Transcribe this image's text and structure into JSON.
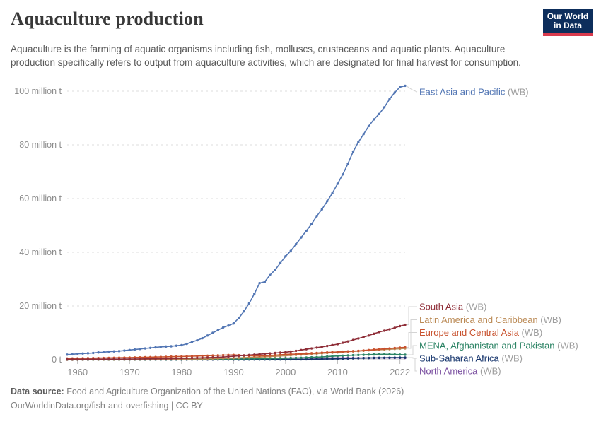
{
  "header": {
    "title": "Aquaculture production",
    "subtitle": "Aquaculture is the farming of aquatic organisms including fish, molluscs, crustaceans and aquatic plants. Aquaculture production specifically refers to output from aquaculture activities, which are designated for final harvest for consumption.",
    "logo": {
      "line1": "Our World",
      "line2": "in Data"
    }
  },
  "footer": {
    "source_label": "Data source:",
    "source_text": "Food and Agriculture Organization of the United Nations (FAO), via World Bank (2026)",
    "link_text": "OurWorldinData.org/fish-and-overfishing",
    "cc_text": " | CC BY"
  },
  "colors": {
    "grid": "#dedede",
    "zero_line": "#c8c8c8",
    "axis_text": "#8c8c8c",
    "connector": "#d4d4d4",
    "wb_suffix": "#9e9e9e",
    "logo_navy": "#0d2e5c",
    "logo_red": "#d93a4d"
  },
  "chart_data": {
    "type": "line",
    "title": "Aquaculture production",
    "unit": "million tonnes",
    "xlabel": "",
    "ylabel": "",
    "xlim": [
      1958,
      2023
    ],
    "ylim": [
      0,
      105
    ],
    "grid": "dashed-horizontal",
    "legend_position": "right-end-labels",
    "x_ticks": [
      {
        "value": 1960,
        "label": "1960"
      },
      {
        "value": 1970,
        "label": "1970"
      },
      {
        "value": 1980,
        "label": "1980"
      },
      {
        "value": 1990,
        "label": "1990"
      },
      {
        "value": 2000,
        "label": "2000"
      },
      {
        "value": 2010,
        "label": "2010"
      },
      {
        "value": 2022,
        "label": "2022"
      }
    ],
    "y_ticks": [
      {
        "value": 0,
        "label": "0 t"
      },
      {
        "value": 20,
        "label": "20 million t"
      },
      {
        "value": 40,
        "label": "40 million t"
      },
      {
        "value": 60,
        "label": "60 million t"
      },
      {
        "value": 80,
        "label": "80 million t"
      },
      {
        "value": 100,
        "label": "100 million t"
      }
    ],
    "x": [
      1958,
      1959,
      1960,
      1961,
      1962,
      1963,
      1964,
      1965,
      1966,
      1967,
      1968,
      1969,
      1970,
      1971,
      1972,
      1973,
      1974,
      1975,
      1976,
      1977,
      1978,
      1979,
      1980,
      1981,
      1982,
      1983,
      1984,
      1985,
      1986,
      1987,
      1988,
      1989,
      1990,
      1991,
      1992,
      1993,
      1994,
      1995,
      1996,
      1997,
      1998,
      1999,
      2000,
      2001,
      2002,
      2003,
      2004,
      2005,
      2006,
      2007,
      2008,
      2009,
      2010,
      2011,
      2012,
      2013,
      2014,
      2015,
      2016,
      2017,
      2018,
      2019,
      2020,
      2021,
      2022,
      2023
    ],
    "series": [
      {
        "name": "East Asia and Pacific",
        "suffix": " (WB)",
        "color": "#5276b4",
        "values": [
          1.9,
          2.0,
          2.2,
          2.3,
          2.4,
          2.5,
          2.7,
          2.8,
          3.0,
          3.1,
          3.2,
          3.4,
          3.6,
          3.8,
          4.0,
          4.2,
          4.4,
          4.6,
          4.8,
          4.9,
          5.0,
          5.2,
          5.4,
          5.9,
          6.6,
          7.2,
          8.0,
          9.0,
          10.0,
          11.0,
          12.0,
          12.7,
          13.5,
          15.5,
          18.0,
          21.0,
          24.5,
          28.5,
          29.0,
          31.5,
          33.5,
          36.0,
          38.5,
          40.5,
          43.0,
          45.5,
          48.0,
          50.5,
          53.5,
          56.0,
          59.0,
          62.0,
          65.5,
          69.0,
          73.0,
          77.5,
          81.0,
          84.0,
          87.0,
          89.5,
          91.5,
          94.0,
          97.0,
          99.5,
          101.5,
          102.0
        ]
      },
      {
        "name": "South Asia",
        "suffix": " (WB)",
        "color": "#8f2e38",
        "values": [
          0.1,
          0.11,
          0.12,
          0.13,
          0.14,
          0.15,
          0.16,
          0.18,
          0.19,
          0.2,
          0.22,
          0.23,
          0.25,
          0.27,
          0.29,
          0.31,
          0.33,
          0.35,
          0.38,
          0.41,
          0.44,
          0.47,
          0.5,
          0.55,
          0.6,
          0.66,
          0.72,
          0.78,
          0.85,
          0.92,
          1.0,
          1.15,
          1.3,
          1.45,
          1.6,
          1.75,
          1.9,
          2.05,
          2.2,
          2.35,
          2.5,
          2.65,
          2.8,
          3.05,
          3.3,
          3.6,
          3.9,
          4.2,
          4.5,
          4.8,
          5.1,
          5.45,
          5.8,
          6.3,
          6.8,
          7.35,
          7.9,
          8.45,
          9.0,
          9.65,
          10.3,
          10.8,
          11.3,
          11.9,
          12.5,
          13.0
        ]
      },
      {
        "name": "Latin America and Caribbean",
        "suffix": " (WB)",
        "color": "#bb8a55",
        "values": [
          0.03,
          0.03,
          0.04,
          0.04,
          0.05,
          0.05,
          0.06,
          0.06,
          0.07,
          0.07,
          0.08,
          0.08,
          0.09,
          0.1,
          0.11,
          0.12,
          0.13,
          0.14,
          0.15,
          0.16,
          0.18,
          0.19,
          0.2,
          0.23,
          0.26,
          0.29,
          0.32,
          0.35,
          0.4,
          0.45,
          0.5,
          0.55,
          0.6,
          0.68,
          0.76,
          0.84,
          0.92,
          1.0,
          1.1,
          1.2,
          1.3,
          1.4,
          1.5,
          1.64,
          1.78,
          1.92,
          2.06,
          2.2,
          2.26,
          2.38,
          2.5,
          2.6,
          2.7,
          2.85,
          3.0,
          3.1,
          3.2,
          3.35,
          3.5,
          3.6,
          3.7,
          3.8,
          3.9,
          4.0,
          4.1,
          4.2
        ]
      },
      {
        "name": "Europe and Central Asia",
        "suffix": " (WB)",
        "color": "#c8512d",
        "values": [
          0.45,
          0.48,
          0.5,
          0.53,
          0.56,
          0.59,
          0.62,
          0.65,
          0.68,
          0.71,
          0.74,
          0.77,
          0.8,
          0.84,
          0.88,
          0.92,
          0.96,
          1.0,
          1.04,
          1.08,
          1.12,
          1.16,
          1.2,
          1.26,
          1.32,
          1.38,
          1.44,
          1.5,
          1.57,
          1.63,
          1.7,
          1.75,
          1.8,
          1.7,
          1.6,
          1.5,
          1.45,
          1.47,
          1.5,
          1.6,
          1.7,
          1.85,
          2.0,
          2.05,
          2.1,
          2.2,
          2.3,
          2.4,
          2.5,
          2.6,
          2.7,
          2.8,
          2.9,
          3.0,
          3.1,
          3.2,
          3.3,
          3.45,
          3.6,
          3.75,
          3.9,
          4.05,
          4.2,
          4.35,
          4.5,
          4.6
        ]
      },
      {
        "name": "MENA, Afghanistan and Pakistan",
        "suffix": " (WB)",
        "color": "#2c8465",
        "values": [
          0.02,
          0.02,
          0.02,
          0.03,
          0.03,
          0.03,
          0.03,
          0.04,
          0.04,
          0.04,
          0.04,
          0.05,
          0.05,
          0.05,
          0.06,
          0.06,
          0.07,
          0.07,
          0.08,
          0.08,
          0.09,
          0.09,
          0.1,
          0.11,
          0.12,
          0.14,
          0.15,
          0.17,
          0.18,
          0.2,
          0.21,
          0.23,
          0.25,
          0.28,
          0.31,
          0.34,
          0.37,
          0.4,
          0.43,
          0.46,
          0.49,
          0.52,
          0.55,
          0.6,
          0.66,
          0.72,
          0.8,
          0.9,
          0.96,
          1.05,
          1.2,
          1.3,
          1.4,
          1.5,
          1.6,
          1.68,
          1.75,
          1.82,
          1.9,
          1.95,
          2.0,
          2.02,
          2.0,
          1.95,
          1.9,
          1.85
        ]
      },
      {
        "name": "Sub-Saharan Africa",
        "suffix": " (WB)",
        "color": "#14336b",
        "values": [
          0.01,
          0.01,
          0.01,
          0.01,
          0.01,
          0.02,
          0.02,
          0.02,
          0.02,
          0.02,
          0.02,
          0.02,
          0.03,
          0.03,
          0.03,
          0.03,
          0.03,
          0.04,
          0.04,
          0.04,
          0.04,
          0.04,
          0.04,
          0.04,
          0.05,
          0.05,
          0.05,
          0.05,
          0.05,
          0.05,
          0.05,
          0.05,
          0.05,
          0.06,
          0.06,
          0.07,
          0.07,
          0.08,
          0.08,
          0.09,
          0.09,
          0.1,
          0.1,
          0.11,
          0.12,
          0.13,
          0.14,
          0.15,
          0.18,
          0.22,
          0.26,
          0.3,
          0.35,
          0.4,
          0.45,
          0.5,
          0.55,
          0.6,
          0.64,
          0.68,
          0.7,
          0.72,
          0.75,
          0.77,
          0.79,
          0.8
        ]
      },
      {
        "name": "North America",
        "suffix": " (WB)",
        "color": "#7a4fa0",
        "values": [
          0.1,
          0.1,
          0.11,
          0.11,
          0.12,
          0.12,
          0.12,
          0.13,
          0.13,
          0.14,
          0.14,
          0.15,
          0.15,
          0.16,
          0.17,
          0.18,
          0.19,
          0.2,
          0.21,
          0.22,
          0.23,
          0.24,
          0.25,
          0.27,
          0.29,
          0.31,
          0.33,
          0.35,
          0.37,
          0.39,
          0.41,
          0.43,
          0.45,
          0.47,
          0.48,
          0.5,
          0.52,
          0.53,
          0.55,
          0.56,
          0.58,
          0.59,
          0.6,
          0.61,
          0.61,
          0.62,
          0.62,
          0.63,
          0.63,
          0.64,
          0.64,
          0.65,
          0.65,
          0.65,
          0.66,
          0.66,
          0.65,
          0.65,
          0.65,
          0.66,
          0.66,
          0.65,
          0.65,
          0.65,
          0.65,
          0.65
        ]
      }
    ]
  }
}
